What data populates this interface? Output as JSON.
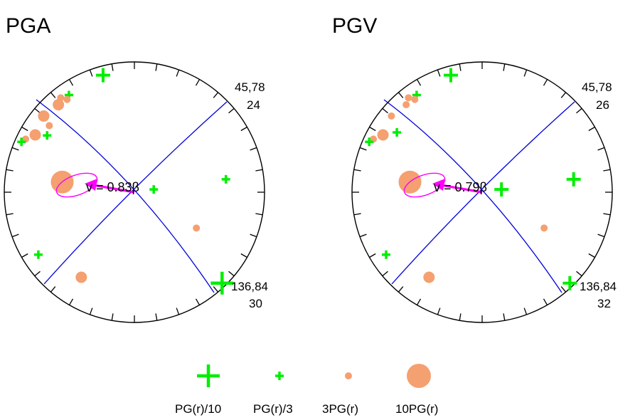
{
  "colors": {
    "plus": "#00ee00",
    "dot": "#f5a070",
    "plane": "#0000dd",
    "ellipse": "#ff00ff",
    "arrow": "#ff00ff"
  },
  "panels": [
    {
      "title": "PGA",
      "plane_label_top": "45,78",
      "plane_value_top": "24",
      "plane_label_bottom": "136,84",
      "plane_value_bottom": "30",
      "velocity_label": "v = 0.83β",
      "markers": [
        {
          "type": "plus",
          "size": "m",
          "az": 345,
          "r": 0.93
        },
        {
          "type": "dot",
          "size": "s",
          "az": 322,
          "r": 0.92
        },
        {
          "type": "dot",
          "size": "m",
          "az": 319,
          "r": 0.89
        },
        {
          "type": "plus",
          "size": "s",
          "az": 326,
          "r": 0.9
        },
        {
          "type": "dot",
          "size": "s",
          "az": 324,
          "r": 0.88
        },
        {
          "type": "dot",
          "size": "m",
          "az": 310,
          "r": 0.91
        },
        {
          "type": "dot",
          "size": "s",
          "az": 308,
          "r": 0.83
        },
        {
          "type": "dot",
          "size": "m",
          "az": 300,
          "r": 0.88
        },
        {
          "type": "plus",
          "size": "s",
          "az": 303,
          "r": 0.8
        },
        {
          "type": "dot",
          "size": "s",
          "az": 296,
          "r": 0.93
        },
        {
          "type": "plus",
          "size": "s",
          "az": 294,
          "r": 0.95
        },
        {
          "type": "dot",
          "size": "l",
          "az": 278,
          "r": 0.56
        },
        {
          "type": "plus",
          "size": "s",
          "az": 82,
          "r": 0.15
        },
        {
          "type": "plus",
          "size": "s",
          "az": 82,
          "r": 0.71
        },
        {
          "type": "dot",
          "size": "s",
          "az": 120,
          "r": 0.55
        },
        {
          "type": "plus",
          "size": "l",
          "az": 136,
          "r": 0.97
        },
        {
          "type": "dot",
          "size": "m",
          "az": 212,
          "r": 0.77
        },
        {
          "type": "plus",
          "size": "s",
          "az": 237,
          "r": 0.88
        }
      ]
    },
    {
      "title": "PGV",
      "plane_label_top": "45,78",
      "plane_value_top": "26",
      "plane_label_bottom": "136,84",
      "plane_value_bottom": "32",
      "velocity_label": "v = 0.79β",
      "markers": [
        {
          "type": "plus",
          "size": "m",
          "az": 345,
          "r": 0.93
        },
        {
          "type": "dot",
          "size": "s",
          "az": 322,
          "r": 0.92
        },
        {
          "type": "dot",
          "size": "s",
          "az": 319,
          "r": 0.89
        },
        {
          "type": "plus",
          "size": "s",
          "az": 326,
          "r": 0.9
        },
        {
          "type": "dot",
          "size": "s",
          "az": 324,
          "r": 0.88
        },
        {
          "type": "dot",
          "size": "s",
          "az": 310,
          "r": 0.91
        },
        {
          "type": "plus",
          "size": "s",
          "az": 305,
          "r": 0.8
        },
        {
          "type": "dot",
          "size": "m",
          "az": 300,
          "r": 0.88
        },
        {
          "type": "dot",
          "size": "s",
          "az": 296,
          "r": 0.93
        },
        {
          "type": "plus",
          "size": "s",
          "az": 294,
          "r": 0.95
        },
        {
          "type": "dot",
          "size": "l",
          "az": 278,
          "r": 0.56
        },
        {
          "type": "plus",
          "size": "m",
          "az": 82,
          "r": 0.15
        },
        {
          "type": "plus",
          "size": "m",
          "az": 82,
          "r": 0.71
        },
        {
          "type": "dot",
          "size": "s",
          "az": 120,
          "r": 0.55
        },
        {
          "type": "plus",
          "size": "m",
          "az": 136,
          "r": 0.97
        },
        {
          "type": "dot",
          "size": "m",
          "az": 212,
          "r": 0.77
        },
        {
          "type": "plus",
          "size": "s",
          "az": 237,
          "r": 0.88
        }
      ]
    }
  ],
  "legend": [
    {
      "type": "plus",
      "size": "l",
      "label": "PG(r)/10"
    },
    {
      "type": "plus",
      "size": "s",
      "label": "PG(r)/3"
    },
    {
      "type": "dot",
      "size": "s",
      "label": "3PG(r)"
    },
    {
      "type": "dot",
      "size": "xl",
      "label": "10PG(r)"
    }
  ]
}
